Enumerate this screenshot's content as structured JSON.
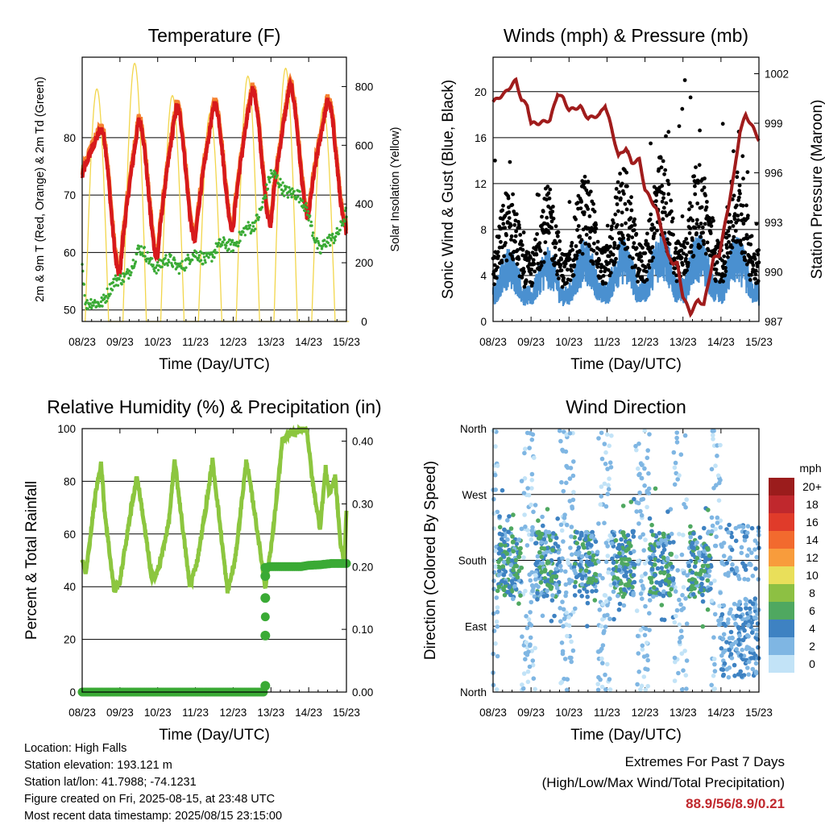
{
  "colors": {
    "temp2m": "#d7191c",
    "temp9m": "#f58231",
    "dewpoint": "#3aaa35",
    "solar": "#f2d64b",
    "wind": "#4a90d0",
    "gust": "#000000",
    "pressure": "#a01c1c",
    "rh": "#8cc63f",
    "precip": "#3aaa35"
  },
  "chart_data": [
    {
      "id": "temperature",
      "type": "line",
      "title": "Temperature (F)",
      "xlabel": "Time (Day/UTC)",
      "ylabel": "2m & 9m T (Red, Orange) & 2m Td (Green)",
      "ylabel_right": "Solar Insolation (Yellow)",
      "x_ticks": [
        "08/23",
        "09/23",
        "10/23",
        "11/23",
        "12/23",
        "13/23",
        "14/23",
        "15/23"
      ],
      "xlim": [
        0,
        7
      ],
      "ylim": [
        48,
        94
      ],
      "y_ticks": [
        50,
        60,
        70,
        80
      ],
      "ylim_right": [
        0,
        900
      ],
      "y_ticks_right": [
        0,
        200,
        400,
        600,
        800
      ],
      "daily_temp_max": [
        81.5,
        83,
        85.5,
        86,
        88.5,
        89,
        86.5,
        85
      ],
      "daily_temp_min": [
        73,
        56,
        59,
        62,
        64,
        65,
        66,
        64,
        76
      ],
      "dewpoint_anchor": [
        [
          0,
          58
        ],
        [
          0.1,
          50
        ],
        [
          0.5,
          52
        ],
        [
          1.0,
          55
        ],
        [
          1.5,
          60
        ],
        [
          2.0,
          58
        ],
        [
          2.5,
          58
        ],
        [
          3.0,
          59
        ],
        [
          3.5,
          60
        ],
        [
          4.0,
          62
        ],
        [
          4.5,
          64
        ],
        [
          5.0,
          73
        ],
        [
          5.5,
          71
        ],
        [
          6.0,
          67
        ],
        [
          6.3,
          60
        ],
        [
          6.6,
          62
        ],
        [
          7.0,
          67
        ]
      ],
      "solar_peak": 880,
      "series": [
        {
          "name": "2m T"
        },
        {
          "name": "9m T"
        },
        {
          "name": "2m Td"
        },
        {
          "name": "Solar Insolation"
        }
      ]
    },
    {
      "id": "winds",
      "type": "scatter",
      "title": "Winds (mph) & Pressure (mb)",
      "xlabel": "Time (Day/UTC)",
      "ylabel": "Sonic Wind & Gust (Blue, Black)",
      "ylabel_right": "Station Pressure (Maroon)",
      "x_ticks": [
        "08/23",
        "09/23",
        "10/23",
        "11/23",
        "12/23",
        "13/23",
        "14/23",
        "15/23"
      ],
      "xlim": [
        0,
        7
      ],
      "ylim": [
        0,
        23
      ],
      "y_ticks": [
        0,
        4,
        8,
        12,
        16,
        20
      ],
      "ylim_right": [
        987,
        1003
      ],
      "y_ticks_right": [
        987,
        990,
        993,
        996,
        999,
        1002
      ],
      "pressure": [
        [
          0,
          1000.3
        ],
        [
          0.3,
          1000.8
        ],
        [
          0.6,
          1001.6
        ],
        [
          0.75,
          1000.4
        ],
        [
          0.9,
          1000.1
        ],
        [
          1.0,
          999.0
        ],
        [
          1.2,
          999.0
        ],
        [
          1.5,
          999.2
        ],
        [
          1.7,
          1000.8
        ],
        [
          1.85,
          1000.5
        ],
        [
          2.0,
          999.8
        ],
        [
          2.3,
          1000.0
        ],
        [
          2.5,
          999.3
        ],
        [
          2.8,
          999.5
        ],
        [
          2.95,
          1000.1
        ],
        [
          3.05,
          999.3
        ],
        [
          3.3,
          997.0
        ],
        [
          3.5,
          997.5
        ],
        [
          3.65,
          996.6
        ],
        [
          3.85,
          996.8
        ],
        [
          4.0,
          995.0
        ],
        [
          4.2,
          994.2
        ],
        [
          4.3,
          993.8
        ],
        [
          4.5,
          992.0
        ],
        [
          4.6,
          991.0
        ],
        [
          4.75,
          990.5
        ],
        [
          4.85,
          990.5
        ],
        [
          5.0,
          988.5
        ],
        [
          5.2,
          987.5
        ],
        [
          5.4,
          988.3
        ],
        [
          5.55,
          988.0
        ],
        [
          5.8,
          990.8
        ],
        [
          5.95,
          991.0
        ],
        [
          6.2,
          994.0
        ],
        [
          6.35,
          996.0
        ],
        [
          6.5,
          998.5
        ],
        [
          6.65,
          999.5
        ],
        [
          6.85,
          998.7
        ],
        [
          7.0,
          998.0
        ]
      ],
      "max_gust": 21,
      "series": [
        {
          "name": "Sonic Wind"
        },
        {
          "name": "Gust"
        },
        {
          "name": "Station Pressure"
        }
      ]
    },
    {
      "id": "humidity",
      "type": "line",
      "title": "Relative Humidity (%) & Precipitation (in)",
      "xlabel": "Time (Day/UTC)",
      "ylabel": "Percent & Total Rainfall",
      "x_ticks": [
        "08/23",
        "09/23",
        "10/23",
        "11/23",
        "12/23",
        "13/23",
        "14/23",
        "15/23"
      ],
      "xlim": [
        0,
        7
      ],
      "ylim": [
        0,
        100
      ],
      "y_ticks": [
        0,
        20,
        40,
        60,
        80,
        100
      ],
      "ylim_right": [
        0,
        0.42
      ],
      "y_ticks_right": [
        "0.00",
        "0.10",
        "0.20",
        "0.30",
        "0.40"
      ],
      "rh": [
        [
          0,
          50
        ],
        [
          0.1,
          45
        ],
        [
          0.35,
          75
        ],
        [
          0.5,
          87
        ],
        [
          0.6,
          68
        ],
        [
          0.85,
          38
        ],
        [
          1.0,
          42
        ],
        [
          1.3,
          70
        ],
        [
          1.45,
          82
        ],
        [
          1.6,
          68
        ],
        [
          1.85,
          42
        ],
        [
          2.05,
          48
        ],
        [
          2.3,
          65
        ],
        [
          2.45,
          88
        ],
        [
          2.6,
          70
        ],
        [
          2.85,
          40
        ],
        [
          3.05,
          50
        ],
        [
          3.3,
          72
        ],
        [
          3.45,
          88
        ],
        [
          3.6,
          70
        ],
        [
          3.85,
          38
        ],
        [
          4.05,
          50
        ],
        [
          4.35,
          88
        ],
        [
          4.55,
          70
        ],
        [
          4.85,
          40
        ],
        [
          5.05,
          60
        ],
        [
          5.3,
          95
        ],
        [
          5.5,
          98
        ],
        [
          5.7,
          99
        ],
        [
          5.95,
          100
        ],
        [
          6.1,
          80
        ],
        [
          6.3,
          62
        ],
        [
          6.45,
          85
        ],
        [
          6.55,
          75
        ],
        [
          6.7,
          82
        ],
        [
          6.85,
          55
        ],
        [
          6.95,
          50
        ],
        [
          7.0,
          70
        ]
      ],
      "precip": [
        [
          0,
          0
        ],
        [
          0.5,
          0
        ],
        [
          1.0,
          0
        ],
        [
          1.5,
          0
        ],
        [
          2.0,
          0
        ],
        [
          2.5,
          0
        ],
        [
          3.0,
          0
        ],
        [
          3.5,
          0
        ],
        [
          4.0,
          0
        ],
        [
          4.5,
          0
        ],
        [
          4.8,
          0
        ],
        [
          4.82,
          0.01
        ],
        [
          4.84,
          0.09
        ],
        [
          4.86,
          0.15
        ],
        [
          4.88,
          0.185
        ],
        [
          4.9,
          0.198
        ],
        [
          4.95,
          0.2
        ],
        [
          5.2,
          0.2
        ],
        [
          5.5,
          0.2
        ],
        [
          5.8,
          0.2
        ],
        [
          6.0,
          0.202
        ],
        [
          6.3,
          0.203
        ],
        [
          6.6,
          0.205
        ],
        [
          7.0,
          0.205
        ]
      ],
      "series": [
        {
          "name": "Relative Humidity"
        },
        {
          "name": "Precipitation"
        }
      ]
    },
    {
      "id": "direction",
      "type": "scatter",
      "title": "Wind Direction",
      "xlabel": "Time (Day/UTC)",
      "ylabel": "Direction (Colored By Speed)",
      "x_ticks": [
        "08/23",
        "09/23",
        "10/23",
        "11/23",
        "12/23",
        "13/23",
        "14/23",
        "15/23"
      ],
      "xlim": [
        0,
        7
      ],
      "ylim": [
        0,
        360
      ],
      "y_tick_labels": [
        "North",
        "East",
        "South",
        "West",
        "North"
      ],
      "y_tick_values": [
        0,
        90,
        180,
        270,
        360
      ],
      "colorbar_title": "mph",
      "colorbar_labels": [
        "20+",
        "18",
        "16",
        "14",
        "12",
        "10",
        "8",
        "6",
        "4",
        "2",
        "0"
      ],
      "colorbar_colors": [
        "#9b1c1c",
        "#c0282d",
        "#e03b2a",
        "#f26a2e",
        "#f89c3c",
        "#e9df5a",
        "#8dc043",
        "#4fa860",
        "#3e82c2",
        "#7fb6e3",
        "#c2e3f7"
      ]
    }
  ],
  "info": {
    "location": "Location: High Falls",
    "elevation": "Station elevation: 193.121 m",
    "latlon": "Station lat/lon: 41.7988; -74.1231",
    "created": "Figure created on Fri, 2025-08-15, at 23:48 UTC",
    "recent": "Most recent data timestamp: 2025/08/15 23:15:00"
  },
  "extremes": {
    "title": "Extremes For Past 7 Days",
    "subtitle": "(High/Low/Max Wind/Total Precipitation)",
    "values": "88.9/56/8.9/0.21"
  }
}
